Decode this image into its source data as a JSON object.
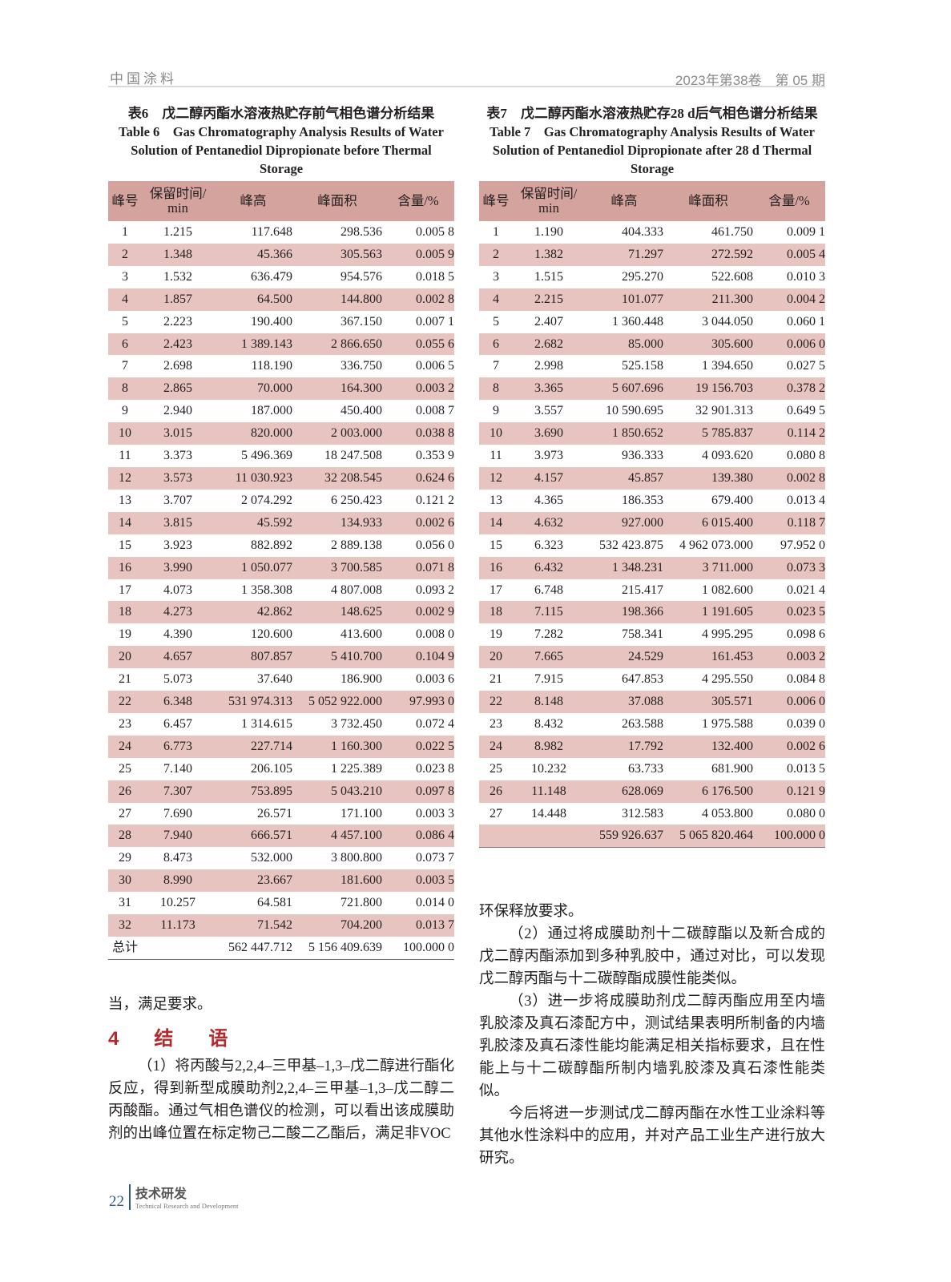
{
  "header": {
    "journal": "中国涂料",
    "issue": "2023年第38卷　第 05 期"
  },
  "table6": {
    "caption_cn": "表6　戊二醇丙酯水溶液热贮存前气相色谱分析结果",
    "caption_en": "Table 6　Gas Chromatography Analysis Results of Water Solution of Pentanediol Dipropionate before Thermal Storage",
    "columns": [
      "峰号",
      "保留时间/ min",
      "峰高",
      "峰面积",
      "含量/%"
    ],
    "rows": [
      [
        "1",
        "1.215",
        "117.648",
        "298.536",
        "0.005 8"
      ],
      [
        "2",
        "1.348",
        "45.366",
        "305.563",
        "0.005 9"
      ],
      [
        "3",
        "1.532",
        "636.479",
        "954.576",
        "0.018 5"
      ],
      [
        "4",
        "1.857",
        "64.500",
        "144.800",
        "0.002 8"
      ],
      [
        "5",
        "2.223",
        "190.400",
        "367.150",
        "0.007 1"
      ],
      [
        "6",
        "2.423",
        "1 389.143",
        "2 866.650",
        "0.055 6"
      ],
      [
        "7",
        "2.698",
        "118.190",
        "336.750",
        "0.006 5"
      ],
      [
        "8",
        "2.865",
        "70.000",
        "164.300",
        "0.003 2"
      ],
      [
        "9",
        "2.940",
        "187.000",
        "450.400",
        "0.008 7"
      ],
      [
        "10",
        "3.015",
        "820.000",
        "2 003.000",
        "0.038 8"
      ],
      [
        "11",
        "3.373",
        "5 496.369",
        "18 247.508",
        "0.353 9"
      ],
      [
        "12",
        "3.573",
        "11 030.923",
        "32 208.545",
        "0.624 6"
      ],
      [
        "13",
        "3.707",
        "2 074.292",
        "6 250.423",
        "0.121 2"
      ],
      [
        "14",
        "3.815",
        "45.592",
        "134.933",
        "0.002 6"
      ],
      [
        "15",
        "3.923",
        "882.892",
        "2 889.138",
        "0.056 0"
      ],
      [
        "16",
        "3.990",
        "1 050.077",
        "3 700.585",
        "0.071 8"
      ],
      [
        "17",
        "4.073",
        "1 358.308",
        "4 807.008",
        "0.093 2"
      ],
      [
        "18",
        "4.273",
        "42.862",
        "148.625",
        "0.002 9"
      ],
      [
        "19",
        "4.390",
        "120.600",
        "413.600",
        "0.008 0"
      ],
      [
        "20",
        "4.657",
        "807.857",
        "5 410.700",
        "0.104 9"
      ],
      [
        "21",
        "5.073",
        "37.640",
        "186.900",
        "0.003 6"
      ],
      [
        "22",
        "6.348",
        "531 974.313",
        "5 052 922.000",
        "97.993 0"
      ],
      [
        "23",
        "6.457",
        "1 314.615",
        "3 732.450",
        "0.072 4"
      ],
      [
        "24",
        "6.773",
        "227.714",
        "1 160.300",
        "0.022 5"
      ],
      [
        "25",
        "7.140",
        "206.105",
        "1 225.389",
        "0.023 8"
      ],
      [
        "26",
        "7.307",
        "753.895",
        "5 043.210",
        "0.097 8"
      ],
      [
        "27",
        "7.690",
        "26.571",
        "171.100",
        "0.003 3"
      ],
      [
        "28",
        "7.940",
        "666.571",
        "4 457.100",
        "0.086 4"
      ],
      [
        "29",
        "8.473",
        "532.000",
        "3 800.800",
        "0.073 7"
      ],
      [
        "30",
        "8.990",
        "23.667",
        "181.600",
        "0.003 5"
      ],
      [
        "31",
        "10.257",
        "64.581",
        "721.800",
        "0.014 0"
      ],
      [
        "32",
        "11.173",
        "71.542",
        "704.200",
        "0.013 7"
      ]
    ],
    "total": [
      "总计",
      "",
      "562 447.712",
      "5 156 409.639",
      "100.000 0"
    ]
  },
  "table7": {
    "caption_cn": "表7　戊二醇丙酯水溶液热贮存28 d后气相色谱分析结果",
    "caption_en": "Table 7　Gas Chromatography Analysis Results of Water Solution of Pentanediol Dipropionate after 28 d Thermal Storage",
    "columns": [
      "峰号",
      "保留时间/ min",
      "峰高",
      "峰面积",
      "含量/%"
    ],
    "rows": [
      [
        "1",
        "1.190",
        "404.333",
        "461.750",
        "0.009 1"
      ],
      [
        "2",
        "1.382",
        "71.297",
        "272.592",
        "0.005 4"
      ],
      [
        "3",
        "1.515",
        "295.270",
        "522.608",
        "0.010 3"
      ],
      [
        "4",
        "2.215",
        "101.077",
        "211.300",
        "0.004 2"
      ],
      [
        "5",
        "2.407",
        "1 360.448",
        "3 044.050",
        "0.060 1"
      ],
      [
        "6",
        "2.682",
        "85.000",
        "305.600",
        "0.006 0"
      ],
      [
        "7",
        "2.998",
        "525.158",
        "1 394.650",
        "0.027 5"
      ],
      [
        "8",
        "3.365",
        "5 607.696",
        "19 156.703",
        "0.378 2"
      ],
      [
        "9",
        "3.557",
        "10 590.695",
        "32 901.313",
        "0.649 5"
      ],
      [
        "10",
        "3.690",
        "1 850.652",
        "5 785.837",
        "0.114 2"
      ],
      [
        "11",
        "3.973",
        "936.333",
        "4 093.620",
        "0.080 8"
      ],
      [
        "12",
        "4.157",
        "45.857",
        "139.380",
        "0.002 8"
      ],
      [
        "13",
        "4.365",
        "186.353",
        "679.400",
        "0.013 4"
      ],
      [
        "14",
        "4.632",
        "927.000",
        "6 015.400",
        "0.118 7"
      ],
      [
        "15",
        "6.323",
        "532 423.875",
        "4 962 073.000",
        "97.952 0"
      ],
      [
        "16",
        "6.432",
        "1 348.231",
        "3 711.000",
        "0.073 3"
      ],
      [
        "17",
        "6.748",
        "215.417",
        "1 082.600",
        "0.021 4"
      ],
      [
        "18",
        "7.115",
        "198.366",
        "1 191.605",
        "0.023 5"
      ],
      [
        "19",
        "7.282",
        "758.341",
        "4 995.295",
        "0.098 6"
      ],
      [
        "20",
        "7.665",
        "24.529",
        "161.453",
        "0.003 2"
      ],
      [
        "21",
        "7.915",
        "647.853",
        "4 295.550",
        "0.084 8"
      ],
      [
        "22",
        "8.148",
        "37.088",
        "305.571",
        "0.006 0"
      ],
      [
        "23",
        "8.432",
        "263.588",
        "1 975.588",
        "0.039 0"
      ],
      [
        "24",
        "8.982",
        "17.792",
        "132.400",
        "0.002 6"
      ],
      [
        "25",
        "10.232",
        "63.733",
        "681.900",
        "0.013 5"
      ],
      [
        "26",
        "11.148",
        "628.069",
        "6 176.500",
        "0.121 9"
      ],
      [
        "27",
        "14.448",
        "312.583",
        "4 053.800",
        "0.080 0"
      ]
    ],
    "total": [
      "",
      "",
      "559 926.637",
      "5 065 820.464",
      "100.000 0"
    ]
  },
  "body": {
    "left_cont": "当，满足要求。",
    "section_title": "4　结　语",
    "p1": "（1）将丙酸与2,2,4–三甲基–1,3–戊二醇进行酯化反应，得到新型成膜助剂2,2,4–三甲基–1,3–戊二醇二丙酸酯。通过气相色谱仪的检测，可以看出该成膜助剂的出峰位置在标定物己二酸二乙酯后，满足非VOC",
    "right_cont": "环保释放要求。",
    "p2": "（2）通过将成膜助剂十二碳醇酯以及新合成的戊二醇丙酯添加到多种乳胶中，通过对比，可以发现戊二醇丙酯与十二碳醇酯成膜性能类似。",
    "p3": "（3）进一步将成膜助剂戊二醇丙酯应用至内墙乳胶漆及真石漆配方中，测试结果表明所制备的内墙乳胶漆及真石漆性能均能满足相关指标要求，且在性能上与十二碳醇酯所制内墙乳胶漆及真石漆性能类似。",
    "p4": "今后将进一步测试戊二醇丙酯在水性工业涂料等其他水性涂料中的应用，并对产品工业生产进行放大研究。"
  },
  "footer": {
    "page": "22",
    "section_cn": "技术研发",
    "section_en": "Technical Research and Development"
  }
}
